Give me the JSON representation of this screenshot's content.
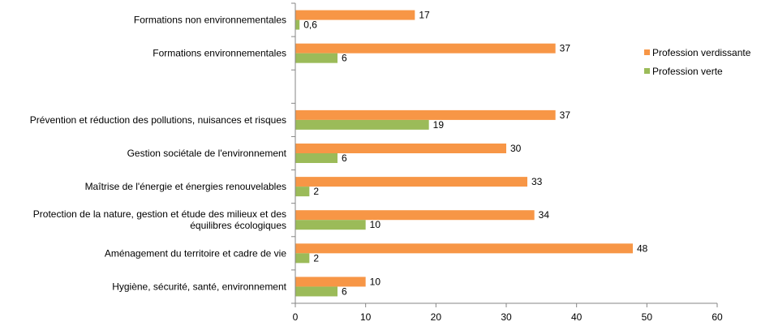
{
  "chart_data": {
    "type": "bar",
    "orientation": "horizontal",
    "categories": [
      [
        "Formations non environnementales"
      ],
      [
        "Formations environnementales"
      ],
      [],
      [
        "Prévention et réduction des pollutions, nuisances et risques"
      ],
      [
        "Gestion sociétale de l'environnement"
      ],
      [
        "Maîtrise de l'énergie et énergies renouvelables"
      ],
      [
        "Protection de la nature, gestion et étude des milieux et des",
        "équilibres écologiques"
      ],
      [
        "Aménagement du territoire et cadre de vie"
      ],
      [
        "Hygiène, sécurité, santé, environnement"
      ]
    ],
    "series": [
      {
        "name": "Profession verdissante",
        "color": "#F79646",
        "values": [
          17,
          37,
          null,
          37,
          30,
          33,
          34,
          48,
          10
        ],
        "labels": [
          "17",
          "37",
          "",
          "37",
          "30",
          "33",
          "34",
          "48",
          "10"
        ]
      },
      {
        "name": "Profession verte",
        "color": "#9BBB59",
        "values": [
          0.6,
          6,
          null,
          19,
          6,
          2,
          10,
          2,
          6
        ],
        "labels": [
          "0,6",
          "6",
          "",
          "19",
          "6",
          "2",
          "10",
          "2",
          "6"
        ]
      }
    ],
    "xlim": [
      0,
      60
    ],
    "xticks": [
      0,
      10,
      20,
      30,
      40,
      50,
      60
    ],
    "legend": "right",
    "grid": false
  }
}
